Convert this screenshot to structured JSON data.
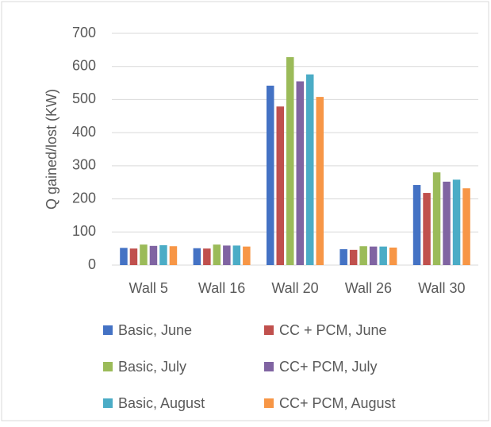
{
  "chart_data": {
    "type": "bar",
    "ylabel": "Q gained/lost (KW)",
    "categories": [
      "Wall 5",
      "Wall 16",
      "Wall 20",
      "Wall 26",
      "Wall 30"
    ],
    "series": [
      {
        "name": "Basic, June",
        "color": "#4472c4",
        "values": [
          52,
          51,
          542,
          48,
          242
        ]
      },
      {
        "name": "CC + PCM, June",
        "color": "#c0504d",
        "values": [
          50,
          50,
          479,
          46,
          218
        ]
      },
      {
        "name": "Basic, July",
        "color": "#9bbb59",
        "values": [
          62,
          62,
          628,
          57,
          280
        ]
      },
      {
        "name": "CC+ PCM, July",
        "color": "#8064a2",
        "values": [
          58,
          59,
          555,
          56,
          252
        ]
      },
      {
        "name": "Basic, August",
        "color": "#4bacc6",
        "values": [
          60,
          59,
          576,
          56,
          258
        ]
      },
      {
        "name": "CC+ PCM, August",
        "color": "#f79646",
        "values": [
          57,
          56,
          508,
          53,
          232
        ]
      }
    ],
    "ylim": [
      0,
      700
    ],
    "yticks": [
      0,
      100,
      200,
      300,
      400,
      500,
      600,
      700
    ],
    "grid": true,
    "legend": "bottom"
  }
}
